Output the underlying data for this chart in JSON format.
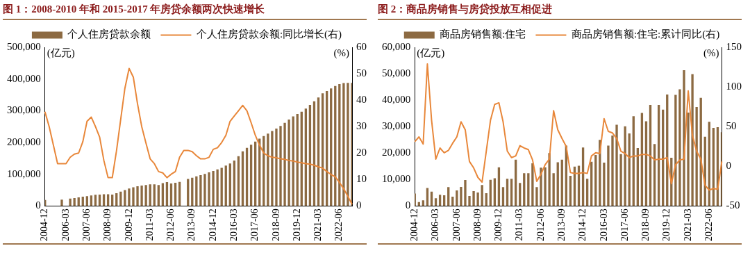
{
  "chart_data": [
    {
      "type": "bar",
      "title": "图 1：2008-2010 年和 2015-2017 年房贷余额两次快速增长",
      "ylabel": "(亿元)",
      "y2label": "(%)",
      "categories": [
        "2004-12",
        null,
        null,
        null,
        null,
        "2006-03",
        null,
        null,
        null,
        null,
        "2007-06",
        null,
        null,
        null,
        null,
        "2008-09",
        null,
        null,
        null,
        null,
        "2009-12",
        null,
        null,
        null,
        null,
        "2011-03",
        null,
        null,
        null,
        null,
        "2012-06",
        null,
        null,
        null,
        null,
        "2013-09",
        null,
        null,
        null,
        null,
        "2014-12",
        null,
        null,
        null,
        null,
        "2016-03",
        null,
        null,
        null,
        null,
        "2017-06",
        null,
        null,
        null,
        null,
        "2018-09",
        null,
        null,
        null,
        null,
        "2019-12",
        null,
        null,
        null,
        null,
        "2021-03",
        null,
        null,
        null,
        null,
        "2022-06",
        null,
        null,
        null
      ],
      "series": [
        {
          "name": "个人住房贷款余额",
          "color": "#8c6a42",
          "values": [
            19000,
            null,
            null,
            null,
            20000,
            null,
            23000,
            25000,
            27000,
            29000,
            31000,
            33000,
            35000,
            36000,
            37000,
            37000,
            36000,
            40000,
            45000,
            50000,
            55000,
            59000,
            62000,
            64000,
            66000,
            68000,
            68000,
            66000,
            72000,
            75000,
            71000,
            73000,
            76000,
            null,
            85000,
            89000,
            93000,
            97000,
            101000,
            106000,
            110000,
            115000,
            120000,
            127000,
            134000,
            143000,
            157000,
            172000,
            183000,
            193000,
            203000,
            212000,
            220000,
            228000,
            236000,
            244000,
            252000,
            262000,
            272000,
            282000,
            290000,
            297000,
            307000,
            318000,
            330000,
            342000,
            355000,
            362000,
            370000,
            378000,
            384000,
            387000,
            388000,
            388000
          ]
        },
        {
          "name": "个人住房贷款余额:同比增长(右)",
          "type": "line",
          "axis": "y2",
          "color": "#e8873a",
          "values": [
            35.6,
            30,
            23,
            16,
            16,
            16,
            18.4,
            19.6,
            20,
            24.3,
            32,
            33.6,
            30,
            26,
            17.2,
            10.7,
            10.7,
            20.8,
            32.7,
            44.5,
            52,
            48.7,
            38.6,
            30,
            23.8,
            17.8,
            16,
            13,
            12.5,
            10.7,
            12,
            13,
            18.4,
            21,
            21,
            20.5,
            19,
            17.8,
            17.8,
            18.4,
            21.4,
            22,
            24,
            26.7,
            32,
            34,
            36,
            38,
            36,
            31.5,
            26.7,
            23,
            20,
            19,
            18.4,
            18.2,
            17.8,
            17.6,
            17.2,
            17,
            16.6,
            16.3,
            16,
            15.8,
            15.4,
            14.8,
            14.3,
            13,
            11.9,
            11,
            8.9,
            6.5,
            3.6,
            0.6
          ]
        }
      ],
      "ylim": [
        0,
        500000
      ],
      "yticks": [
        {
          "value": 0,
          "label": "0"
        },
        {
          "value": 100000,
          "label": "100,000"
        },
        {
          "value": 200000,
          "label": "200,000"
        },
        {
          "value": 300000,
          "label": "300,000"
        },
        {
          "value": 400000,
          "label": "400,000"
        },
        {
          "value": 500000,
          "label": "500,000"
        }
      ],
      "y2lim": [
        0,
        60
      ],
      "y2ticks": [
        0,
        10,
        20,
        30,
        40,
        50,
        60
      ],
      "legend": "top"
    },
    {
      "type": "bar",
      "title": "图 2：商品房销售与房贷投放互相促进",
      "ylabel": "(亿元)",
      "y2label": "(%)",
      "categories": [
        "2004-12",
        null,
        null,
        null,
        null,
        "2006-03",
        null,
        null,
        null,
        null,
        "2007-06",
        null,
        null,
        null,
        null,
        "2008-09",
        null,
        null,
        null,
        null,
        "2009-12",
        null,
        null,
        null,
        null,
        "2011-03",
        null,
        null,
        null,
        null,
        "2012-06",
        null,
        null,
        null,
        null,
        "2013-09",
        null,
        null,
        null,
        null,
        "2014-12",
        null,
        null,
        null,
        null,
        "2016-03",
        null,
        null,
        null,
        null,
        "2017-06",
        null,
        null,
        null,
        null,
        "2018-09",
        null,
        null,
        null,
        null,
        "2019-12",
        null,
        null,
        null,
        null,
        "2021-03",
        null,
        null,
        null,
        null,
        "2022-06",
        null,
        null,
        null
      ],
      "series": [
        {
          "name": "商品房销售额:住宅",
          "color": "#8c6a42",
          "values": [
            4700,
            1500,
            2100,
            6800,
            5400,
            2900,
            4200,
            4000,
            7100,
            3500,
            5900,
            7200,
            9800,
            3800,
            5600,
            5100,
            7900,
            4800,
            9900,
            10500,
            14600,
            7100,
            10300,
            10300,
            17500,
            8700,
            12400,
            12400,
            16100,
            7100,
            14500,
            14600,
            20000,
            12400,
            16500,
            17500,
            22800,
            11400,
            14900,
            15200,
            22100,
            10300,
            16700,
            19300,
            25000,
            16400,
            22800,
            26600,
            30700,
            19600,
            30100,
            27400,
            33900,
            21900,
            35200,
            32000,
            38200,
            23400,
            38200,
            36400,
            42100,
            18200,
            42000,
            44100,
            51300,
            35300,
            49800,
            37400,
            40900,
            26200,
            31800,
            29500,
            29800,
            27900
          ]
        },
        {
          "name": "商品房销售额:住宅:累计同比(右)",
          "type": "line",
          "axis": "y2",
          "color": "#e8873a",
          "values": [
            31,
            37,
            28,
            129,
            58,
            9,
            23,
            17,
            20,
            29,
            37,
            56,
            46,
            6,
            -2,
            -14,
            -20,
            19,
            58,
            78,
            80,
            56,
            19,
            11,
            13,
            26,
            23,
            21,
            8,
            -19,
            -10,
            2,
            9,
            70,
            46,
            35,
            25,
            -8,
            -9,
            -9,
            -8,
            -9,
            13,
            17,
            16,
            60,
            44,
            42,
            35,
            19,
            16,
            11,
            13,
            13,
            15,
            15,
            13,
            8,
            9,
            9,
            11,
            -22,
            2,
            8,
            9,
            95,
            39,
            19,
            9,
            -24,
            -30,
            -28,
            -29,
            6
          ]
        }
      ],
      "ylim": [
        0,
        60000
      ],
      "yticks": [
        {
          "value": 0,
          "label": "0"
        },
        {
          "value": 10000,
          "label": "10,000"
        },
        {
          "value": 20000,
          "label": "20,000"
        },
        {
          "value": 30000,
          "label": "30,000"
        },
        {
          "value": 40000,
          "label": "40,000"
        },
        {
          "value": 50000,
          "label": "50,000"
        },
        {
          "value": 60000,
          "label": "60,000"
        }
      ],
      "y2lim": [
        -50,
        150
      ],
      "y2ticks": [
        -50,
        0,
        50,
        100,
        150
      ],
      "legend": "top"
    }
  ]
}
